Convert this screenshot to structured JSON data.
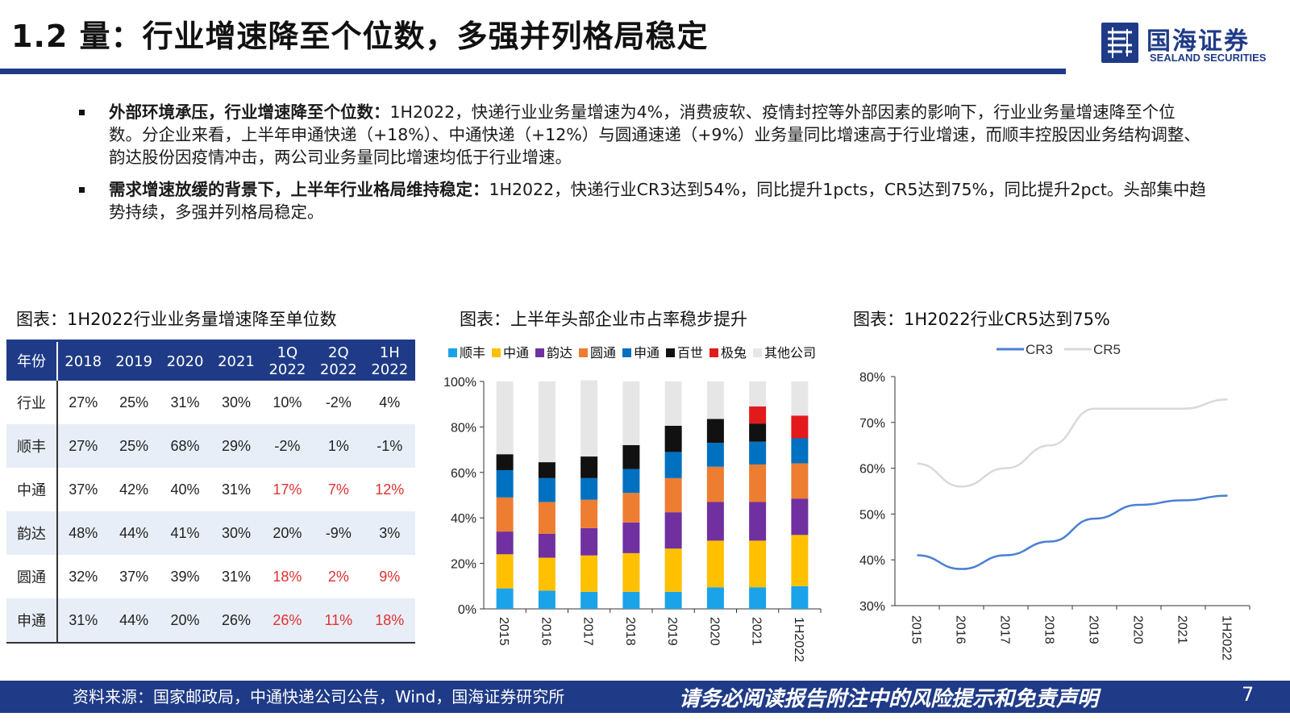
{
  "title": "1.2 量：行业增速降至个位数，多强并列格局稳定",
  "logo": {
    "cn": "国海证券",
    "en": "SEALAND SECURITIES"
  },
  "bullets": [
    {
      "bold": "外部环境承压，行业增速降至个位数：",
      "text": "1H2022，快递行业业务量增速为4%，消费疲软、疫情封控等外部因素的影响下，行业业务量增速降至个位数。分企业来看，上半年申通快递（+18%）、中通快递（+12%）与圆通速递（+9%）业务量同比增速高于行业增速，而顺丰控股因业务结构调整、韵达股份因疫情冲击，两公司业务量同比增速均低于行业增速。"
    },
    {
      "bold": "需求增速放缓的背景下，上半年行业格局维持稳定：",
      "text": "1H2022，快递行业CR3达到54%，同比提升1pcts，CR5达到75%，同比提升2pct。头部集中趋势持续，多强并列格局稳定。"
    }
  ],
  "captions": {
    "table": "图表：1H2022行业业务量增速降至单位数",
    "bar": "图表：上半年头部企业市占率稳步提升",
    "line": "图表：1H2022行业CR5达到75%"
  },
  "table": {
    "header": [
      "年份",
      "2018",
      "2019",
      "2020",
      "2021",
      "1Q 2022",
      "2Q 2022",
      "1H 2022"
    ],
    "rows": [
      {
        "name": "行业",
        "cells": [
          "27%",
          "25%",
          "31%",
          "30%",
          "10%",
          "-2%",
          "4%"
        ],
        "red": []
      },
      {
        "name": "顺丰",
        "cells": [
          "27%",
          "25%",
          "68%",
          "29%",
          "-2%",
          "1%",
          "-1%"
        ],
        "red": []
      },
      {
        "name": "中通",
        "cells": [
          "37%",
          "42%",
          "40%",
          "31%",
          "17%",
          "7%",
          "12%"
        ],
        "red": [
          4,
          5,
          6
        ]
      },
      {
        "name": "韵达",
        "cells": [
          "48%",
          "44%",
          "41%",
          "30%",
          "20%",
          "-9%",
          "3%"
        ],
        "red": []
      },
      {
        "name": "圆通",
        "cells": [
          "32%",
          "37%",
          "39%",
          "31%",
          "18%",
          "2%",
          "9%"
        ],
        "red": [
          4,
          5,
          6
        ]
      },
      {
        "name": "申通",
        "cells": [
          "31%",
          "44%",
          "20%",
          "26%",
          "26%",
          "11%",
          "18%"
        ],
        "red": [
          4,
          5,
          6
        ]
      }
    ],
    "header_color": "#1f3b87",
    "stripe_color": "#e8eef7",
    "highlight_color": "#e03030"
  },
  "chart_data": [
    {
      "type": "bar",
      "stacked": true,
      "categories": [
        "2015",
        "2016",
        "2017",
        "2018",
        "2019",
        "2020",
        "2021",
        "1H2022"
      ],
      "series": [
        {
          "name": "顺丰",
          "color": "#1aa3e8",
          "values": [
            9,
            8,
            7.5,
            7.5,
            7.5,
            9.5,
            9.5,
            10
          ]
        },
        {
          "name": "中通",
          "color": "#ffc000",
          "values": [
            15,
            14.5,
            16,
            17,
            19,
            20.5,
            20.5,
            22.5
          ]
        },
        {
          "name": "韵达",
          "color": "#7030a0",
          "values": [
            10,
            10.5,
            12,
            13.5,
            16,
            17,
            17,
            16
          ]
        },
        {
          "name": "圆通",
          "color": "#ed7d31",
          "values": [
            15,
            14,
            12.5,
            13,
            15,
            15.5,
            16.5,
            15.5
          ]
        },
        {
          "name": "申通",
          "color": "#0070c0",
          "values": [
            12,
            10.5,
            9.5,
            10.5,
            11.5,
            10.5,
            10,
            11
          ]
        },
        {
          "name": "百世",
          "color": "#111111",
          "values": [
            7,
            7,
            9.5,
            10.5,
            11.5,
            10.5,
            8,
            0
          ]
        },
        {
          "name": "极兔",
          "color": "#e31a1c",
          "values": [
            0,
            0,
            0,
            0,
            0,
            0,
            7.5,
            10
          ]
        },
        {
          "name": "其他公司",
          "color": "#e6e6e6",
          "values": [
            32,
            35.5,
            33.5,
            28,
            19.5,
            16.5,
            11,
            15
          ]
        }
      ],
      "ylim": [
        0,
        100
      ],
      "yticks": [
        "0%",
        "20%",
        "40%",
        "60%",
        "80%",
        "100%"
      ],
      "legend": "top"
    },
    {
      "type": "line",
      "x": [
        "2015",
        "2016",
        "2017",
        "2018",
        "2019",
        "2020",
        "2021",
        "1H2022"
      ],
      "series": [
        {
          "name": "CR3",
          "color": "#4a7fd4",
          "values": [
            41,
            38,
            41,
            44,
            49,
            52,
            53,
            54
          ]
        },
        {
          "name": "CR5",
          "color": "#d9d9d9",
          "values": [
            61,
            56,
            60,
            65,
            73,
            73,
            73,
            75
          ]
        }
      ],
      "ylim": [
        30,
        80
      ],
      "yticks": [
        "30%",
        "40%",
        "50%",
        "60%",
        "70%",
        "80%"
      ],
      "legend": "top"
    }
  ],
  "footer": {
    "source": "资料来源：国家邮政局，中通快递公司公告，Wind，国海证券研究所",
    "disclaimer": "请务必阅读报告附注中的风险提示和免责声明",
    "page": "7"
  }
}
